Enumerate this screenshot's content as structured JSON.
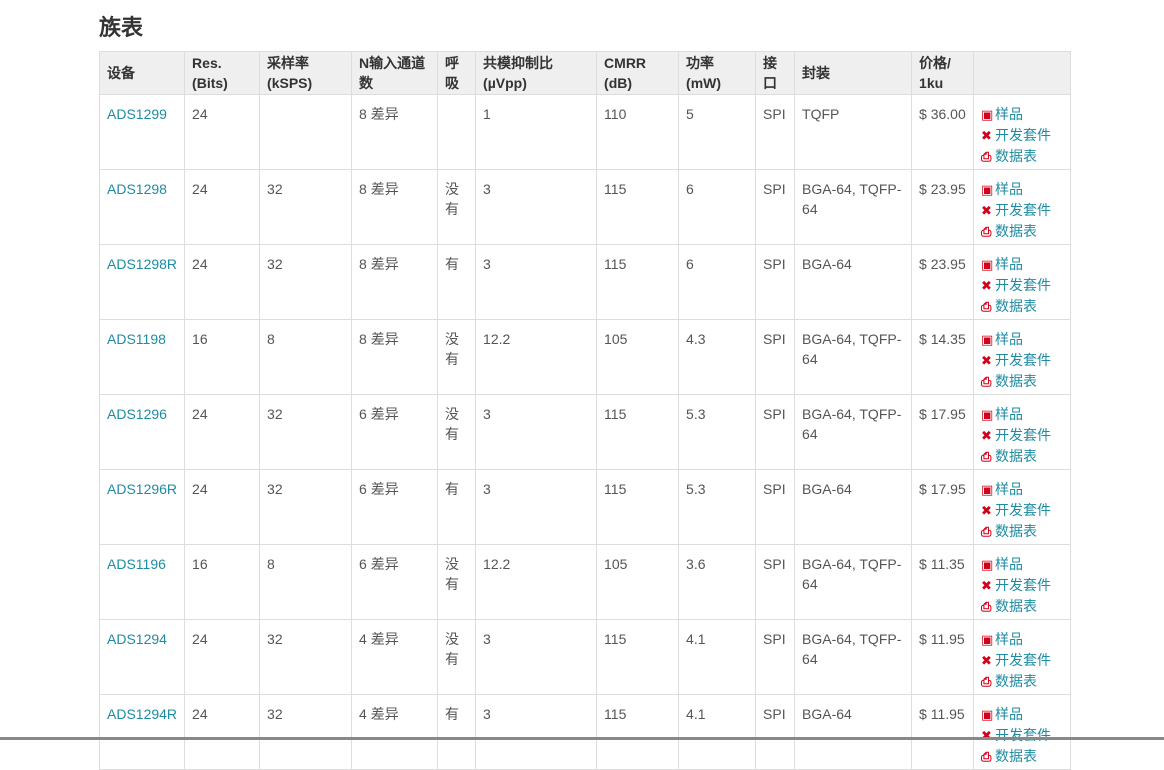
{
  "title": "族表",
  "headers": [
    "设备",
    "Res. (Bits)",
    "采样率 (kSPS)",
    "N输入通道数",
    "呼吸",
    "共模抑制比 (µVpp)",
    "CMRR (dB)",
    "功率 (mW)",
    "接口",
    "封装",
    "价格/ 1ku",
    ""
  ],
  "actions": {
    "sample": "样品",
    "devkit": "开发套件",
    "datasheet": "数据表"
  },
  "icons": {
    "sample": "chip-icon",
    "devkit": "tools-icon",
    "datasheet": "pdf-icon"
  },
  "rows": [
    [
      "ADS1299",
      "24",
      "",
      "8 差异",
      "",
      "1",
      "110",
      "5",
      "SPI",
      "TQFP",
      "$ 36.00"
    ],
    [
      "ADS1298",
      "24",
      "32",
      "8 差异",
      "没有",
      "3",
      "115",
      "6",
      "SPI",
      "BGA-64, TQFP-64",
      "$ 23.95"
    ],
    [
      "ADS1298R",
      "24",
      "32",
      "8 差异",
      "有",
      "3",
      "115",
      "6",
      "SPI",
      "BGA-64",
      "$ 23.95"
    ],
    [
      "ADS1198",
      "16",
      "8",
      "8 差异",
      "没有",
      "12.2",
      "105",
      "4.3",
      "SPI",
      "BGA-64, TQFP-64",
      "$ 14.35"
    ],
    [
      "ADS1296",
      "24",
      "32",
      "6 差异",
      "没有",
      "3",
      "115",
      "5.3",
      "SPI",
      "BGA-64, TQFP-64",
      "$ 17.95"
    ],
    [
      "ADS1296R",
      "24",
      "32",
      "6 差异",
      "有",
      "3",
      "115",
      "5.3",
      "SPI",
      "BGA-64",
      "$ 17.95"
    ],
    [
      "ADS1196",
      "16",
      "8",
      "6 差异",
      "没有",
      "12.2",
      "105",
      "3.6",
      "SPI",
      "BGA-64, TQFP-64",
      "$ 11.35"
    ],
    [
      "ADS1294",
      "24",
      "32",
      "4 差异",
      "没有",
      "3",
      "115",
      "4.1",
      "SPI",
      "BGA-64, TQFP-64",
      "$ 11.95"
    ],
    [
      "ADS1294R",
      "24",
      "32",
      "4 差异",
      "有",
      "3",
      "115",
      "4.1",
      "SPI",
      "BGA-64",
      "$ 11.95"
    ]
  ]
}
